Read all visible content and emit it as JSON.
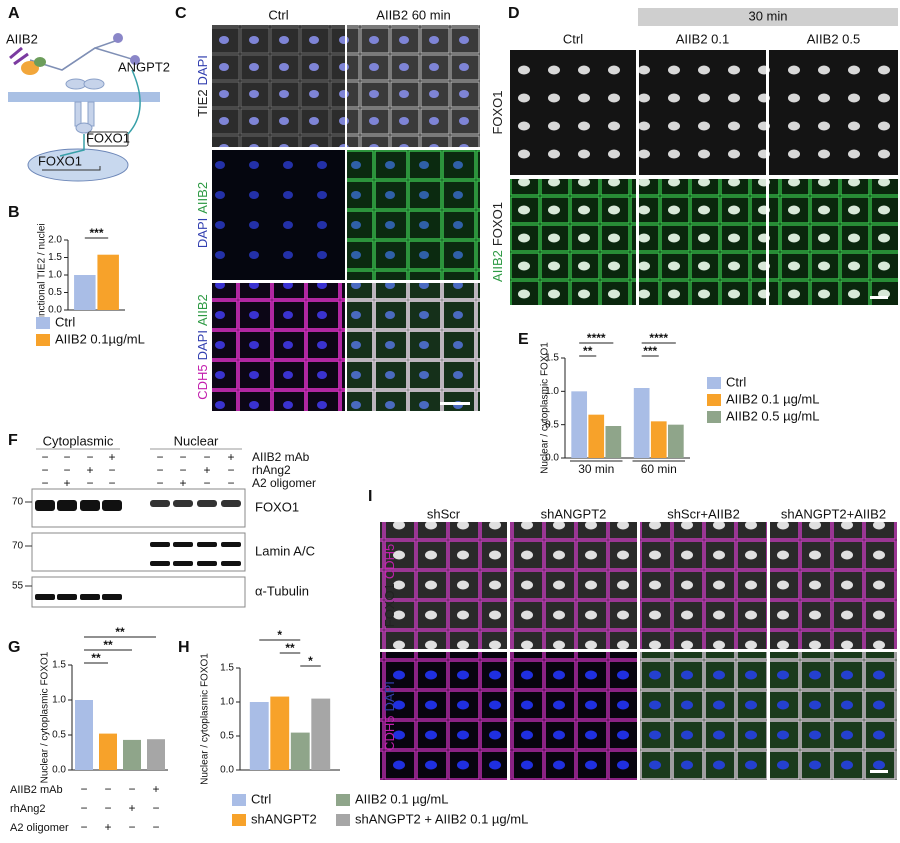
{
  "chart_data": [
    {
      "type": "bar",
      "panel": "B",
      "y_label": "Junctional TIE2 / nuclei",
      "categories": [
        null
      ],
      "series": [
        {
          "name": "Ctrl",
          "color": "#a9bde6",
          "values": [
            1.0
          ]
        },
        {
          "name": "AIIB2 0.1µg/mL",
          "color": "#f7a22a",
          "values": [
            1.58
          ]
        }
      ],
      "ylim": [
        0,
        2
      ],
      "yticks": [
        {
          "value": 0,
          "label": "0.0"
        },
        0.5,
        {
          "value": 1,
          "label": "1.0"
        },
        1.5,
        {
          "value": 2,
          "label": "2.0"
        }
      ],
      "significance": [
        "***"
      ]
    },
    {
      "type": "bar",
      "panel": "E",
      "y_label": "Nuclear / cytoplasmic FOXO1",
      "categories": [
        "30 min",
        "60 min"
      ],
      "series": [
        {
          "name": "Ctrl",
          "color": "#a9bde6",
          "values": [
            1.0,
            1.05
          ]
        },
        {
          "name": "AIIB2 0.1 µg/mL",
          "color": "#f7a22a",
          "values": [
            0.65,
            0.55
          ]
        },
        {
          "name": "AIIB2 0.5 µg/mL",
          "color": "#8fa58a",
          "values": [
            0.48,
            0.5
          ]
        }
      ],
      "ylim": [
        0,
        1.5
      ],
      "yticks": [
        {
          "value": 0,
          "label": "0.0"
        },
        0.5,
        {
          "value": 1,
          "label": "1.0"
        },
        1.5
      ],
      "significance": [
        "**",
        "****",
        "***",
        "****"
      ]
    },
    {
      "type": "bar",
      "panel": "G",
      "y_label": "Nuclear / cytoplasmic FOXO1",
      "values": [
        1.0,
        0.52,
        0.43,
        0.44
      ],
      "colors": [
        "#a9bde6",
        "#f7a22a",
        "#8fa58a",
        "#a6a6a6"
      ],
      "ylim": [
        0,
        1.5
      ],
      "yticks": [
        {
          "value": 0,
          "label": "0.0"
        },
        0.5,
        {
          "value": 1,
          "label": "1.0"
        },
        1.5
      ],
      "significance": [
        "**",
        "**",
        "**"
      ],
      "conditions": [
        {
          "name": "AIIB2 mAb",
          "signs": [
            "−",
            "−",
            "−",
            "+"
          ]
        },
        {
          "name": "rhAng2",
          "signs": [
            "−",
            "−",
            "+",
            "−"
          ]
        },
        {
          "name": "A2 oligomer",
          "signs": [
            "−",
            "+",
            "−",
            "−"
          ]
        }
      ]
    },
    {
      "type": "bar",
      "panel": "H",
      "y_label": "Nuclear / cytoplasmic FOXO1",
      "categories": [
        null
      ],
      "series": [
        {
          "name": "Ctrl",
          "color": "#a9bde6",
          "values": [
            1.0
          ]
        },
        {
          "name": "shANGPT2",
          "color": "#f7a22a",
          "values": [
            1.08
          ]
        },
        {
          "name": "AIIB2 0.1 µg/mL",
          "color": "#8fa58a",
          "values": [
            0.55
          ]
        },
        {
          "name": "shANGPT2 + AIIB2 0.1 µg/mL",
          "color": "#a6a6a6",
          "values": [
            1.05
          ]
        }
      ],
      "ylim": [
        0,
        1.5
      ],
      "yticks": [
        {
          "value": 0,
          "label": "0.0"
        },
        0.5,
        {
          "value": 1,
          "label": "1.0"
        },
        1.5
      ],
      "significance": [
        "*",
        "**",
        "*"
      ]
    }
  ],
  "panels": {
    "A": {
      "label": "A",
      "texts": [
        "AIIB2",
        "ANGPT2",
        "FOXO1",
        "FOXO1"
      ]
    },
    "C": {
      "label": "C",
      "columns": [
        "Ctrl",
        "AIIB2 60 min"
      ],
      "rows": [
        [
          {
            "text": "TIE2",
            "color": "#222222"
          },
          {
            "text": "DAPI",
            "color": "#3340b0"
          }
        ],
        [
          {
            "text": "DAPI",
            "color": "#3340b0"
          },
          {
            "text": "AIIB2",
            "color": "#2e9a44"
          }
        ],
        [
          {
            "text": "CDH5",
            "color": "#c21fae"
          },
          {
            "text": "DAPI",
            "color": "#3340b0"
          },
          {
            "text": "AIIB2",
            "color": "#2e9a44"
          }
        ]
      ]
    },
    "D": {
      "label": "D",
      "header": "30 min",
      "columns": [
        "Ctrl",
        "AIIB2 0.1",
        "AIIB2 0.5"
      ],
      "rows": [
        [
          {
            "text": "FOXO1",
            "color": "#222222"
          }
        ],
        [
          {
            "text": "AIIB2",
            "color": "#2e9a44"
          },
          {
            "text": "FOXO1",
            "color": "#222222"
          }
        ]
      ]
    },
    "F": {
      "label": "F",
      "fractions": [
        "Cytoplasmic",
        "Nuclear"
      ],
      "conditions": [
        {
          "name": "AIIB2 mAb",
          "signs": [
            "−",
            "−",
            "−",
            "+",
            "−",
            "−",
            "−",
            "+"
          ]
        },
        {
          "name": "rhAng2",
          "signs": [
            "−",
            "−",
            "+",
            "−",
            "−",
            "−",
            "+",
            "−"
          ]
        },
        {
          "name": "A2 oligomer",
          "signs": [
            "−",
            "+",
            "−",
            "−",
            "−",
            "+",
            "−",
            "−"
          ]
        }
      ],
      "blots": [
        {
          "name": "FOXO1",
          "marker": 70
        },
        {
          "name": "Lamin A/C",
          "marker": 70
        },
        {
          "name": "α-Tubulin",
          "marker": 55
        }
      ]
    },
    "I": {
      "label": "I",
      "columns": [
        "shScr",
        "shANGPT2",
        "shScr+AIIB2",
        "shANGPT2+AIIB2"
      ],
      "rows": [
        [
          {
            "text": "FOXO1",
            "color": "#222222"
          },
          {
            "text": "CDH5",
            "color": "#c21fae"
          }
        ],
        [
          {
            "text": "CDH5",
            "color": "#c21fae"
          },
          {
            "text": "DAPI",
            "color": "#3340b0"
          }
        ]
      ]
    }
  }
}
